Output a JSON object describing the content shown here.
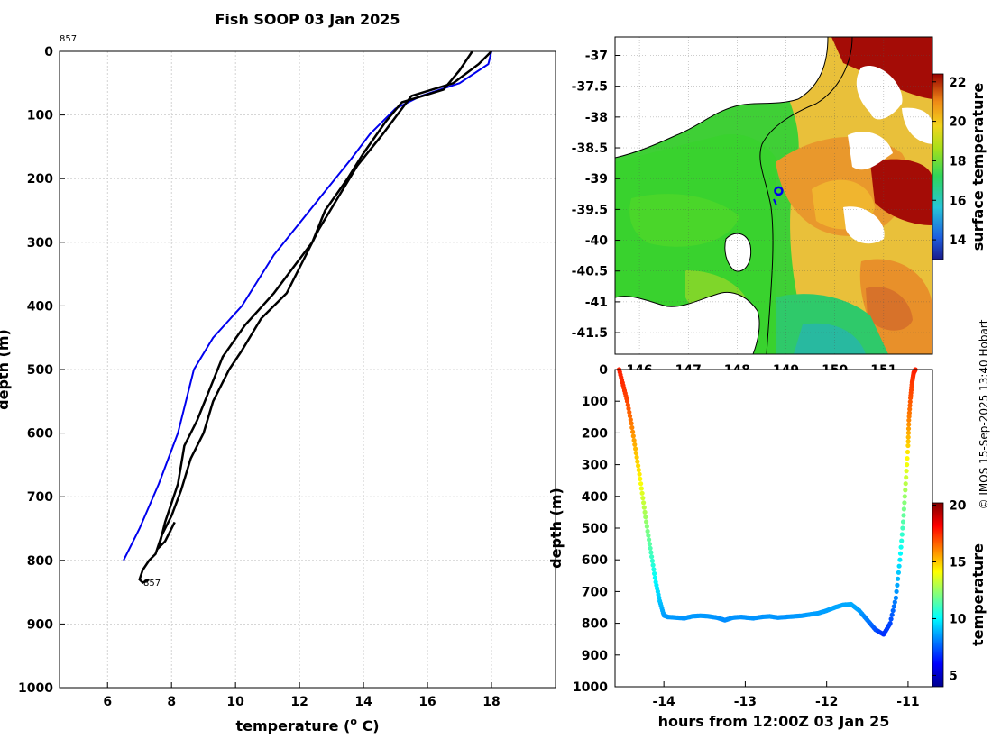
{
  "title": "Fish SOOP 03 Jan 2025",
  "credit": "© IMOS 15-Sep-2025 13:40 Hobart",
  "colors": {
    "profile": "#000000",
    "climatology": "#0000ee"
  },
  "chart_data": [
    {
      "type": "line",
      "name": "temperature-profile",
      "xlabel": "temperature (° C)",
      "xlabel_main": "temperature (",
      "xlabel_sup": "o",
      "xlabel_tail": " C)",
      "ylabel": "depth (m)",
      "xlim": [
        4.5,
        20
      ],
      "ylim": [
        0,
        1000
      ],
      "xticks": [
        6,
        8,
        10,
        12,
        14,
        16,
        18
      ],
      "yticks": [
        0,
        100,
        200,
        300,
        400,
        500,
        600,
        700,
        800,
        900,
        1000
      ],
      "annotation_top": "857",
      "annotation_bottom": "857",
      "series": [
        {
          "name": "climatology",
          "color": "#0000ee",
          "temperature": [
            18.0,
            17.9,
            17.0,
            15.8,
            15.0,
            14.2,
            13.6,
            12.8,
            12.0,
            11.2,
            10.2,
            9.3,
            8.7,
            8.2,
            7.6,
            7.0,
            6.5
          ],
          "depth": [
            0,
            20,
            50,
            70,
            90,
            130,
            170,
            220,
            270,
            320,
            400,
            450,
            500,
            600,
            680,
            750,
            800
          ]
        },
        {
          "name": "drop-1",
          "color": "#000000",
          "temperature": [
            18.0,
            17.6,
            16.8,
            15.5,
            15.2,
            14.6,
            13.8,
            13.2,
            12.6,
            12.1,
            11.6,
            10.8,
            10.2,
            9.8,
            9.3,
            9.0,
            8.6,
            8.3,
            8.0,
            7.7,
            7.5,
            7.3,
            7.1,
            7.0,
            7.1,
            7.3
          ],
          "depth": [
            0,
            20,
            50,
            70,
            90,
            130,
            180,
            230,
            280,
            330,
            380,
            420,
            470,
            500,
            550,
            600,
            640,
            690,
            730,
            760,
            790,
            800,
            815,
            830,
            835,
            830
          ]
        },
        {
          "name": "drop-2",
          "color": "#000000",
          "temperature": [
            17.4,
            17.0,
            16.5,
            15.2,
            14.7,
            14.0,
            13.5,
            12.8,
            12.4,
            11.8,
            11.2,
            10.3,
            9.6,
            9.2,
            8.8,
            8.4,
            8.2,
            7.8,
            7.6,
            7.8,
            8.1
          ],
          "depth": [
            0,
            30,
            60,
            80,
            110,
            160,
            200,
            250,
            300,
            340,
            380,
            430,
            480,
            530,
            580,
            620,
            680,
            740,
            780,
            770,
            740
          ]
        }
      ]
    },
    {
      "type": "heatmap",
      "name": "sst-map",
      "colorbar_label": "surface temperature",
      "colorbar_ticks": [
        14,
        16,
        18,
        20,
        22
      ],
      "xticks": [
        146,
        147,
        148,
        149,
        150,
        151
      ],
      "yticks": [
        -37,
        -37.5,
        -38,
        -38.5,
        -39,
        -39.5,
        -40,
        -40.5,
        -41,
        -41.5
      ],
      "xlim": [
        145.5,
        152
      ],
      "ylim": [
        -41.85,
        -36.7
      ],
      "drop_location": [
        148.85,
        -39.2
      ]
    },
    {
      "type": "scatter",
      "name": "depth-time",
      "xlabel": "hours from 12:00Z 03 Jan 25",
      "ylabel": "depth (m)",
      "colorbar_label": "temperature",
      "colorbar_ticks": [
        5,
        10,
        15,
        20
      ],
      "xticks": [
        -14,
        -13,
        -12,
        -11
      ],
      "yticks": [
        0,
        100,
        200,
        300,
        400,
        500,
        600,
        700,
        800,
        900,
        1000
      ],
      "xlim": [
        -14.6,
        -10.7
      ],
      "ylim": [
        0,
        1000
      ],
      "hours": [
        -14.55,
        -14.5,
        -14.45,
        -14.4,
        -14.35,
        -14.3,
        -14.25,
        -14.2,
        -14.15,
        -14.1,
        -14.05,
        -14.0,
        -13.95,
        -13.85,
        -13.75,
        -13.65,
        -13.55,
        -13.45,
        -13.35,
        -13.25,
        -13.15,
        -13.05,
        -12.98,
        -12.9,
        -12.8,
        -12.7,
        -12.6,
        -12.5,
        -12.4,
        -12.3,
        -12.2,
        -12.1,
        -12.0,
        -11.9,
        -11.8,
        -11.7,
        -11.6,
        -11.5,
        -11.4,
        -11.3,
        -11.22,
        -11.15,
        -11.1,
        -11.06,
        -11.03,
        -11.0,
        -10.99,
        -10.97,
        -10.95,
        -10.93,
        -10.92,
        -10.91
      ],
      "depth": [
        0,
        50,
        100,
        170,
        250,
        330,
        420,
        510,
        590,
        670,
        730,
        775,
        780,
        782,
        784,
        778,
        776,
        778,
        782,
        790,
        782,
        780,
        782,
        784,
        780,
        778,
        782,
        780,
        778,
        776,
        772,
        768,
        760,
        750,
        742,
        740,
        760,
        790,
        820,
        835,
        800,
        720,
        600,
        480,
        360,
        240,
        160,
        90,
        40,
        10,
        5,
        0
      ],
      "temperature": [
        18.0,
        17.8,
        17.4,
        16.6,
        15.6,
        14.8,
        13.6,
        12.4,
        11.4,
        10.4,
        9.6,
        9.0,
        8.9,
        8.9,
        8.8,
        8.9,
        8.9,
        8.9,
        8.8,
        8.7,
        8.8,
        8.8,
        8.8,
        8.8,
        8.8,
        8.9,
        8.8,
        8.8,
        8.9,
        8.9,
        9.0,
        9.0,
        9.0,
        9.1,
        9.1,
        9.2,
        9.0,
        8.5,
        7.8,
        7.2,
        7.6,
        8.6,
        10.2,
        11.8,
        13.4,
        15.2,
        16.4,
        17.2,
        17.6,
        17.9,
        18.0,
        18.0
      ]
    }
  ]
}
